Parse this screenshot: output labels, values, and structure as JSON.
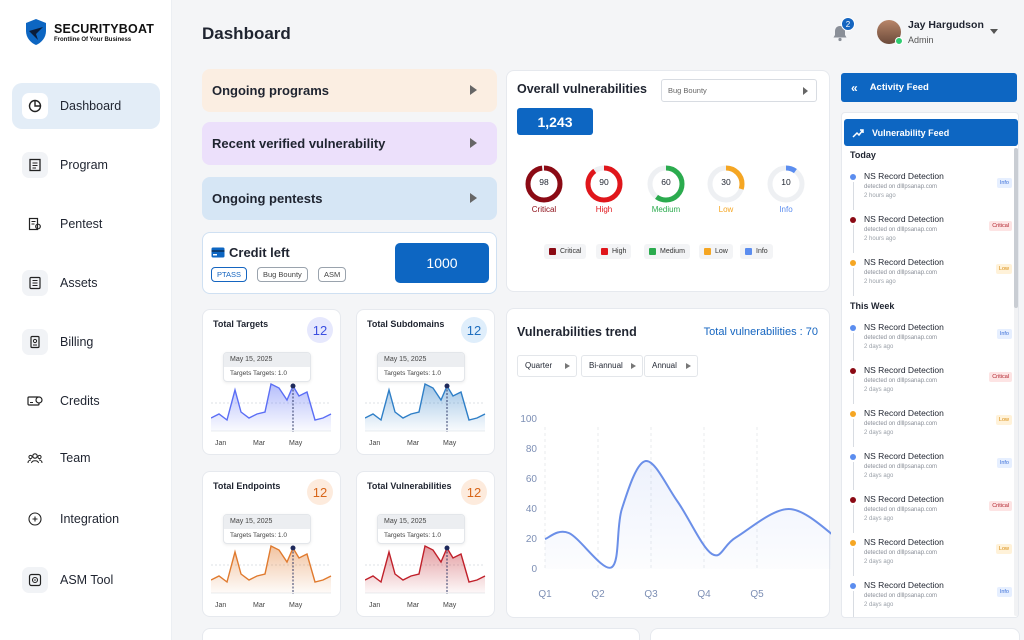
{
  "brand": {
    "name": "SECURITYBOAT",
    "tagline": "Frontline Of Your Business"
  },
  "sidebar": {
    "items": [
      {
        "label": "Dashboard",
        "icon": "chart-pie-icon",
        "active": true
      },
      {
        "label": "Program",
        "icon": "document-icon"
      },
      {
        "label": "Pentest",
        "icon": "pentest-icon"
      },
      {
        "label": "Assets",
        "icon": "assets-icon"
      },
      {
        "label": "Billing",
        "icon": "billing-icon"
      },
      {
        "label": "Credits",
        "icon": "credits-icon"
      },
      {
        "label": "Team",
        "icon": "team-icon"
      },
      {
        "label": "Integration",
        "icon": "integration-icon"
      },
      {
        "label": "ASM Tool",
        "icon": "asm-tool-icon"
      }
    ]
  },
  "header": {
    "title": "Dashboard",
    "notifications": "2",
    "user": {
      "name": "Jay Hargudson",
      "role": "Admin"
    }
  },
  "program_cards": [
    {
      "label": "Ongoing programs",
      "color": "#fbeee2"
    },
    {
      "label": "Recent verified vulnerability",
      "color": "#ece0fb"
    },
    {
      "label": "Ongoing pentests",
      "color": "#d6e6f5"
    }
  ],
  "credit": {
    "title": "Credit left",
    "value": "1000",
    "tags": [
      "PTASS",
      "Bug Bounty",
      "ASM"
    ]
  },
  "mini_cards": [
    {
      "title": "Total Targets",
      "count": "12",
      "color": "#5b6ef5",
      "tip_date": "May 15, 2025",
      "tip_text": "Targets Targets: 1.0",
      "x_labels": [
        "Jan",
        "Mar",
        "May"
      ]
    },
    {
      "title": "Total Subdomains",
      "count": "12",
      "color": "#2f7fc7",
      "tip_date": "May 15, 2025",
      "tip_text": "Targets Targets: 1.0",
      "x_labels": [
        "Jan",
        "Mar",
        "May"
      ]
    },
    {
      "title": "Total Endpoints",
      "count": "12",
      "color": "#e07a2e",
      "tip_date": "May 15, 2025",
      "tip_text": "Targets Targets: 1.0",
      "x_labels": [
        "Jan",
        "Mar",
        "May"
      ]
    },
    {
      "title": "Total Vulnerabilities",
      "count": "12",
      "color": "#c0202a",
      "tip_date": "May 15, 2025",
      "tip_text": "Targets Targets: 1.0",
      "x_labels": [
        "Jan",
        "Mar",
        "May"
      ]
    }
  ],
  "overall": {
    "title": "Overall vulnerabilities",
    "select": "Bug Bounty",
    "total": "1,243",
    "severities": [
      {
        "label": "Critical",
        "value": "98",
        "color": "#8b0a14",
        "pct": 0.98
      },
      {
        "label": "High",
        "value": "90",
        "color": "#e0161b",
        "pct": 0.9
      },
      {
        "label": "Medium",
        "value": "60",
        "color": "#2bab4e",
        "pct": 0.6
      },
      {
        "label": "Low",
        "value": "30",
        "color": "#f5a623",
        "pct": 0.3
      },
      {
        "label": "Info",
        "value": "10",
        "color": "#5b8def",
        "pct": 0.1
      }
    ]
  },
  "trend": {
    "title": "Vulnerabilities trend",
    "total_label": "Total vulnerabilities : 70",
    "buttons": [
      "Quarter",
      "Bi-annual",
      "Annual"
    ],
    "color": "#6b8fe8"
  },
  "chart_data": {
    "type": "area",
    "title": "Vulnerabilities trend",
    "x": [
      "Q1",
      "Q2",
      "Q3",
      "Q4",
      "Q5"
    ],
    "y_ticks": [
      0,
      20,
      40,
      60,
      80,
      100
    ],
    "ylim": [
      0,
      100
    ],
    "curve": [
      [
        0,
        20
      ],
      [
        0.45,
        24
      ],
      [
        1.25,
        1
      ],
      [
        1.45,
        40
      ],
      [
        1.9,
        72
      ],
      [
        2.5,
        45
      ],
      [
        3.15,
        10
      ],
      [
        3.6,
        21
      ],
      [
        4.6,
        40
      ],
      [
        5.5,
        21
      ]
    ],
    "grid": "vertical dashed"
  },
  "activity": {
    "title": "Activity Feed",
    "feed_title": "Vulnerability Feed"
  },
  "feed": {
    "groups": [
      {
        "label": "Today",
        "items": [
          {
            "title": "NS Record Detection",
            "sub": "detected on dlllpsanap.com",
            "when": "2 hours ago",
            "badge": "Info",
            "color": "#5b8def"
          },
          {
            "title": "NS Record Detection",
            "sub": "detected on dlllpsanap.com",
            "when": "2 hours ago",
            "badge": "Critical",
            "color": "#8b0a14"
          },
          {
            "title": "NS Record Detection",
            "sub": "detected on dlllpsanap.com",
            "when": "2 hours ago",
            "badge": "Low",
            "color": "#f5a623"
          }
        ]
      },
      {
        "label": "This Week",
        "items": [
          {
            "title": "NS Record Detection",
            "sub": "detected on dlllpsanap.com",
            "when": "2 days ago",
            "badge": "Info",
            "color": "#5b8def"
          },
          {
            "title": "NS Record Detection",
            "sub": "detected on dlllpsanap.com",
            "when": "2 days ago",
            "badge": "Critical",
            "color": "#8b0a14"
          },
          {
            "title": "NS Record Detection",
            "sub": "detected on dlllpsanap.com",
            "when": "2 days ago",
            "badge": "Low",
            "color": "#f5a623"
          },
          {
            "title": "NS Record Detection",
            "sub": "detected on dlllpsanap.com",
            "when": "2 days ago",
            "badge": "Info",
            "color": "#5b8def"
          },
          {
            "title": "NS Record Detection",
            "sub": "detected on dlllpsanap.com",
            "when": "2 days ago",
            "badge": "Critical",
            "color": "#8b0a14"
          },
          {
            "title": "NS Record Detection",
            "sub": "detected on dlllpsanap.com",
            "when": "2 days ago",
            "badge": "Low",
            "color": "#f5a623"
          },
          {
            "title": "NS Record Detection",
            "sub": "detected on dlllpsanap.com",
            "when": "2 days ago",
            "badge": "Info",
            "color": "#5b8def"
          }
        ]
      }
    ]
  }
}
